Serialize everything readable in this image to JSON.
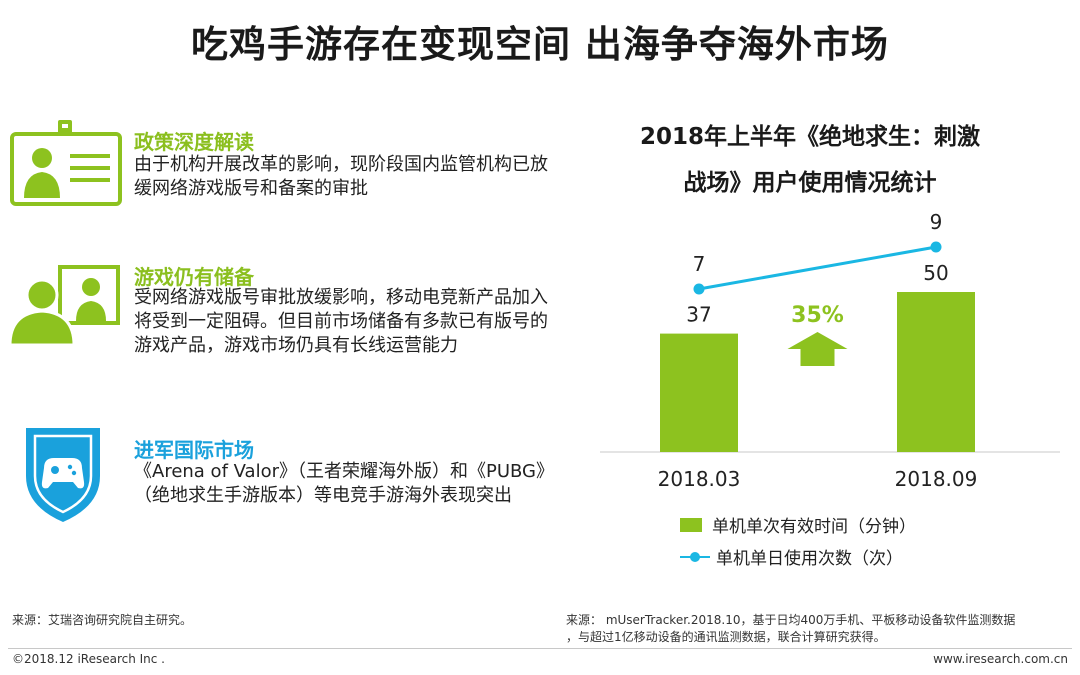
{
  "title": "吃鸡手游存在变现空间 出海争夺海外市场",
  "items": [
    {
      "heading": "政策深度解读",
      "body": "由于机构开展改革的影响，现阶段国内监管机构已放缓网络游戏版号和备案的审批",
      "icon": "id-badge-icon"
    },
    {
      "heading": "游戏仍有储备",
      "body": "受网络游戏版号审批放缓影响，移动电竞新产品加入将受到一定阻碍。但目前市场储备有多款已有版号的游戏产品，游戏市场仍具有长线运营能力",
      "icon": "users-screen-icon"
    },
    {
      "heading": "进军国际市场",
      "body": "《Arena of Valor》（王者荣耀海外版）和《PUBG》（绝地求生手游版本）等电竞手游海外表现突出",
      "icon": "shield-gamepad-icon"
    }
  ],
  "chart_title_line1": "2018年上半年《绝地求生：刺激",
  "chart_title_line2": "战场》用户使用情况统计",
  "chart_data": {
    "type": "bar",
    "categories": [
      "2018.03",
      "2018.09"
    ],
    "series": [
      {
        "name": "单机单次有效时间（分钟）",
        "kind": "bar",
        "values": [
          37,
          50
        ],
        "color": "#8dc21f"
      },
      {
        "name": "单机单日使用次数（次）",
        "kind": "line",
        "values": [
          7,
          9
        ],
        "color": "#1ab7e3"
      }
    ],
    "annotation": "35%",
    "annotation_color": "#8dc21f"
  },
  "source_left": "来源：艾瑞咨询研究院自主研究。",
  "source_right_line1": "来源： mUserTracker.2018.10，基于日均400万手机、平板移动设备软件监测数据",
  "source_right_line2": "，与超过1亿移动设备的通讯监测数据，联合计算研究获得。",
  "footer_left": "©2018.12 iResearch Inc .",
  "footer_right": "www.iresearch.com.cn"
}
